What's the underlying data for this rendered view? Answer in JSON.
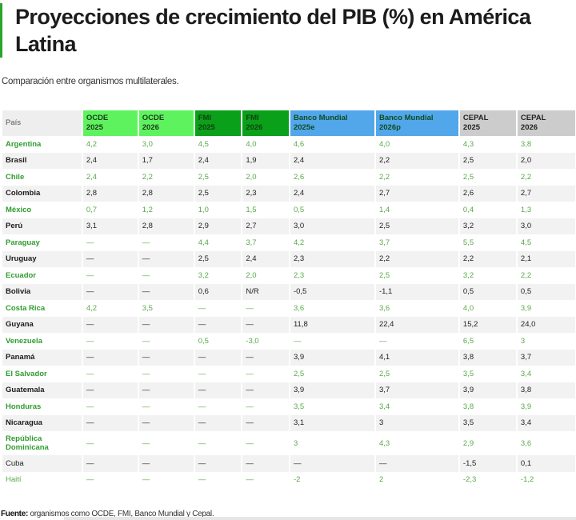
{
  "title": "Proyecciones de crecimiento del PIB (%) en América Latina",
  "subtitle": "Comparación entre organismos multilaterales.",
  "colors": {
    "accent_bar": "#2aa52a",
    "ocde_header": "#5ef35e",
    "fmi_header": "#0ba01a",
    "bm_header": "#52a6ea",
    "cepal_header": "#cccccc",
    "green_text": "#5aa94a"
  },
  "table": {
    "headers": {
      "country": "País",
      "c1": [
        "OCDE",
        "2025"
      ],
      "c2": [
        "OCDE",
        "2026"
      ],
      "c3": [
        "FMI",
        "2025"
      ],
      "c4": [
        "FMI",
        "2026"
      ],
      "c5": [
        "Banco Mundial",
        "2025e"
      ],
      "c6": [
        "Banco Mundial",
        "2026p"
      ],
      "c7": [
        "CEPAL",
        "2025"
      ],
      "c8": [
        "CEPAL",
        "2026"
      ]
    },
    "rows": [
      {
        "country": "Argentina",
        "v": [
          "4,2",
          "3,0",
          "4,5",
          "4,0",
          "4,6",
          "4,0",
          "4,3",
          "3,8"
        ]
      },
      {
        "country": "Brasil",
        "v": [
          "2,4",
          "1,7",
          "2,4",
          "1,9",
          "2,4",
          "2,2",
          "2,5",
          "2,0"
        ]
      },
      {
        "country": "Chile",
        "v": [
          "2,4",
          "2,2",
          "2,5",
          "2,0",
          "2,6",
          "2,2",
          "2,5",
          "2,2"
        ]
      },
      {
        "country": "Colombia",
        "v": [
          "2,8",
          "2,8",
          "2,5",
          "2,3",
          "2,4",
          "2,7",
          "2,6",
          "2,7"
        ]
      },
      {
        "country": "México",
        "v": [
          "0,7",
          "1,2",
          "1,0",
          "1,5",
          "0,5",
          "1,4",
          "0,4",
          "1,3"
        ]
      },
      {
        "country": "Perú",
        "v": [
          "3,1",
          "2,8",
          "2,9",
          "2,7",
          "3,0",
          "2,5",
          "3,2",
          "3,0"
        ]
      },
      {
        "country": "Paraguay",
        "v": [
          "—",
          "—",
          "4,4",
          "3,7",
          "4,2",
          "3,7",
          "5,5",
          "4,5"
        ]
      },
      {
        "country": "Uruguay",
        "v": [
          "—",
          "—",
          "2,5",
          "2,4",
          "2,3",
          "2,2",
          "2,2",
          "2,1"
        ]
      },
      {
        "country": "Ecuador",
        "v": [
          "—",
          "—",
          "3,2",
          "2,0",
          "2,3",
          "2,5",
          "3,2",
          "2,2"
        ]
      },
      {
        "country": "Bolivia",
        "v": [
          "—",
          "—",
          "0,6",
          "N/R",
          "-0,5",
          "-1,1",
          "0,5",
          "0,5"
        ]
      },
      {
        "country": "Costa Rica",
        "v": [
          "4,2",
          "3,5",
          "—",
          "—",
          "3,6",
          "3,6",
          "4,0",
          "3,9"
        ]
      },
      {
        "country": "Guyana",
        "v": [
          "—",
          "—",
          "—",
          "—",
          "11,8",
          "22,4",
          "15,2",
          "24,0"
        ]
      },
      {
        "country": "Venezuela",
        "v": [
          "—",
          "—",
          "0,5",
          "-3,0",
          "—",
          "—",
          "6,5",
          "3"
        ]
      },
      {
        "country": "Panamá",
        "v": [
          "—",
          "—",
          "—",
          "—",
          "3,9",
          "4,1",
          "3,8",
          "3,7"
        ]
      },
      {
        "country": "El Salvador",
        "v": [
          "—",
          "—",
          "—",
          "—",
          "2,5",
          "2,5",
          "3,5",
          "3,4"
        ]
      },
      {
        "country": "Guatemala",
        "v": [
          "—",
          "—",
          "—",
          "—",
          "3,9",
          "3,7",
          "3,9",
          "3,8"
        ]
      },
      {
        "country": "Honduras",
        "v": [
          "—",
          "—",
          "—",
          "—",
          "3,5",
          "3,4",
          "3,8",
          "3,9"
        ]
      },
      {
        "country": "Nicaragua",
        "v": [
          "—",
          "—",
          "—",
          "—",
          "3,1",
          "3",
          "3,5",
          "3,4"
        ]
      },
      {
        "country": "República Dominicana",
        "v": [
          "—",
          "—",
          "—",
          "—",
          "3",
          "4,3",
          "2,9",
          "3,6"
        ]
      },
      {
        "country": "Cuba",
        "v": [
          "—",
          "—",
          "—",
          "—",
          "—",
          "—",
          "-1,5",
          "0,1"
        ]
      },
      {
        "country": "Haití",
        "v": [
          "—",
          "—",
          "—",
          "—",
          "-2",
          "2",
          "-2,3",
          "-1,2"
        ]
      }
    ]
  },
  "footer": {
    "label": "Fuente:",
    "text": " organismos como OCDE, FMI, Banco Mundial y Cepal."
  }
}
